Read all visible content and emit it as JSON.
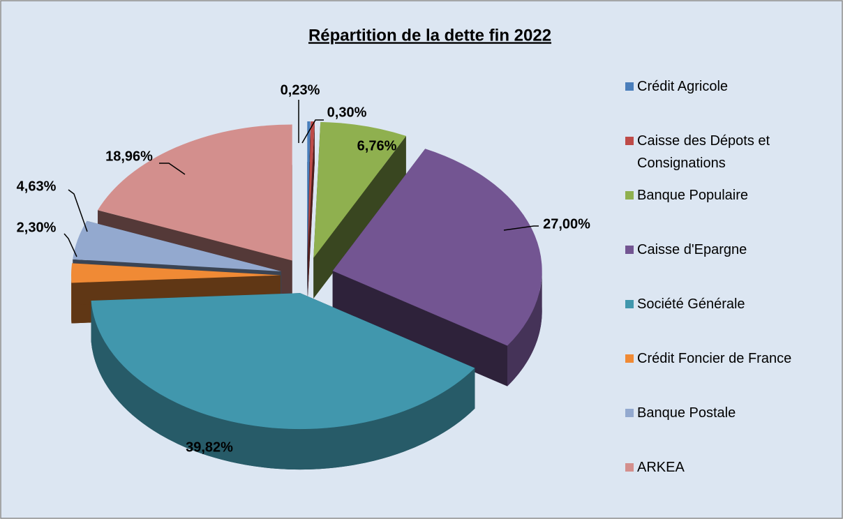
{
  "chart_data": {
    "type": "pie",
    "title": "Répartition de la dette fin 2022",
    "categories": [
      "Crédit Agricole",
      "Caisse des Dépots et Consignations",
      "Banque Populaire",
      "Caisse d'Epargne",
      "Société Générale",
      "Crédit Foncier de France",
      "Banque Postale",
      "ARKEA"
    ],
    "values": [
      0.23,
      0.3,
      6.76,
      27.0,
      39.82,
      2.3,
      4.63,
      18.96
    ],
    "value_labels": [
      "0,23%",
      "0,30%",
      "6,76%",
      "27,00%",
      "39,82%",
      "2,30%",
      "4,63%",
      "18,96%"
    ],
    "colors": [
      "#4a7ebb",
      "#be4b48",
      "#8fb04f",
      "#735592",
      "#4197ad",
      "#f08a35",
      "#93a9cf",
      "#d38f8d"
    ],
    "legend": "right"
  }
}
